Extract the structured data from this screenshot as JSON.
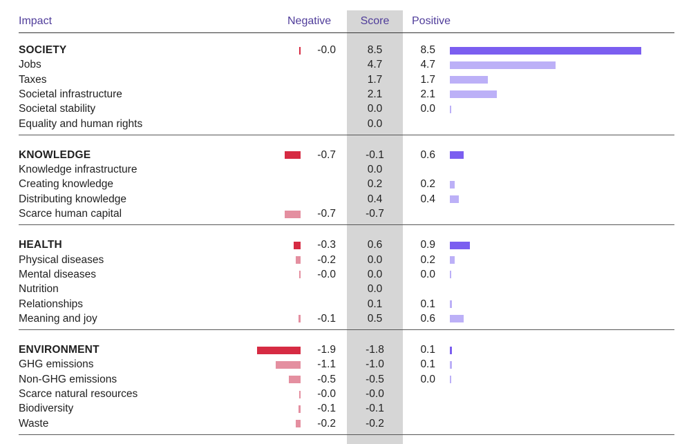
{
  "headers": {
    "impact": "Impact",
    "negative": "Negative",
    "score": "Score",
    "positive": "Positive"
  },
  "colors": {
    "neg_category": "#d62b43",
    "neg_item": "#e48fa0",
    "pos_category": "#7b5ef0",
    "pos_item": "#bcb0f7",
    "header_text": "#4f3c9a",
    "score_band": "#d6d6d6"
  },
  "chart_data": {
    "type": "table",
    "columns": [
      "Impact",
      "Negative",
      "Score",
      "Positive"
    ],
    "scale": {
      "negative_max": 1.9,
      "positive_max": 8.5
    },
    "groups": [
      {
        "category": {
          "label": "SOCIETY",
          "negative": "-0.0",
          "score": "8.5",
          "positive": "8.5"
        },
        "items": [
          {
            "label": "Jobs",
            "negative": "",
            "score": "4.7",
            "positive": "4.7"
          },
          {
            "label": "Taxes",
            "negative": "",
            "score": "1.7",
            "positive": "1.7"
          },
          {
            "label": "Societal infrastructure",
            "negative": "",
            "score": "2.1",
            "positive": "2.1"
          },
          {
            "label": "Societal stability",
            "negative": "",
            "score": "0.0",
            "positive": "0.0"
          },
          {
            "label": "Equality and human rights",
            "negative": "",
            "score": "0.0",
            "positive": ""
          }
        ]
      },
      {
        "category": {
          "label": "KNOWLEDGE",
          "negative": "-0.7",
          "score": "-0.1",
          "positive": "0.6"
        },
        "items": [
          {
            "label": "Knowledge infrastructure",
            "negative": "",
            "score": "0.0",
            "positive": ""
          },
          {
            "label": "Creating knowledge",
            "negative": "",
            "score": "0.2",
            "positive": "0.2"
          },
          {
            "label": "Distributing knowledge",
            "negative": "",
            "score": "0.4",
            "positive": "0.4"
          },
          {
            "label": "Scarce human capital",
            "negative": "-0.7",
            "score": "-0.7",
            "positive": ""
          }
        ]
      },
      {
        "category": {
          "label": "HEALTH",
          "negative": "-0.3",
          "score": "0.6",
          "positive": "0.9"
        },
        "items": [
          {
            "label": "Physical diseases",
            "negative": "-0.2",
            "score": "0.0",
            "positive": "0.2"
          },
          {
            "label": "Mental diseases",
            "negative": "-0.0",
            "score": "0.0",
            "positive": "0.0"
          },
          {
            "label": "Nutrition",
            "negative": "",
            "score": "0.0",
            "positive": ""
          },
          {
            "label": "Relationships",
            "negative": "",
            "score": "0.1",
            "positive": "0.1"
          },
          {
            "label": "Meaning and joy",
            "negative": "-0.1",
            "score": "0.5",
            "positive": "0.6"
          }
        ]
      },
      {
        "category": {
          "label": "ENVIRONMENT",
          "negative": "-1.9",
          "score": "-1.8",
          "positive": "0.1"
        },
        "items": [
          {
            "label": "GHG emissions",
            "negative": "-1.1",
            "score": "-1.0",
            "positive": "0.1"
          },
          {
            "label": "Non-GHG emissions",
            "negative": "-0.5",
            "score": "-0.5",
            "positive": "0.0"
          },
          {
            "label": "Scarce natural resources",
            "negative": "-0.0",
            "score": "-0.0",
            "positive": ""
          },
          {
            "label": "Biodiversity",
            "negative": "-0.1",
            "score": "-0.1",
            "positive": ""
          },
          {
            "label": "Waste",
            "negative": "-0.2",
            "score": "-0.2",
            "positive": ""
          }
        ]
      }
    ]
  }
}
